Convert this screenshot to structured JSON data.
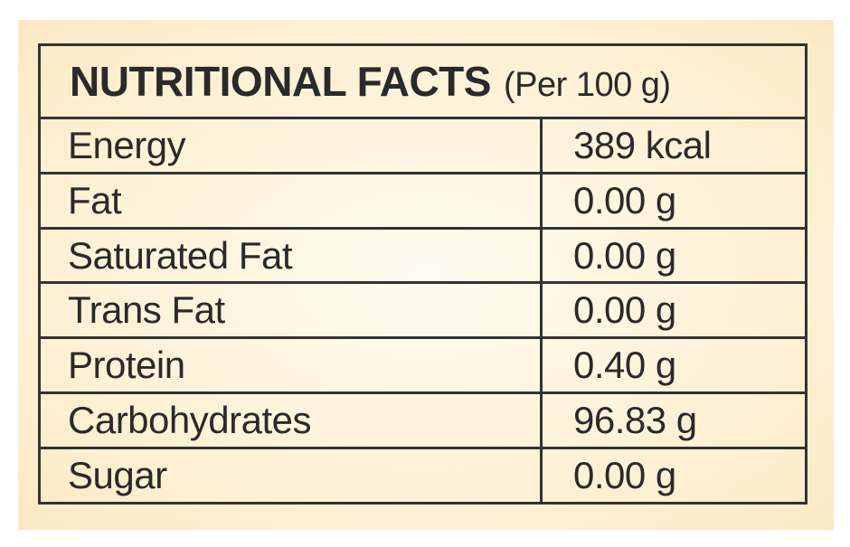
{
  "header": {
    "title": "NUTRITIONAL FACTS",
    "subtitle": "(Per 100 g)"
  },
  "table": {
    "rows": [
      [
        "Energy",
        "389 kcal"
      ],
      [
        "Fat",
        "0.00 g"
      ],
      [
        "Saturated Fat",
        "0.00 g"
      ],
      [
        "Trans Fat",
        "0.00 g"
      ],
      [
        "Protein",
        "0.40 g"
      ],
      [
        "Carbohydrates",
        "96.83 g"
      ],
      [
        "Sugar",
        "0.00 g"
      ]
    ]
  }
}
